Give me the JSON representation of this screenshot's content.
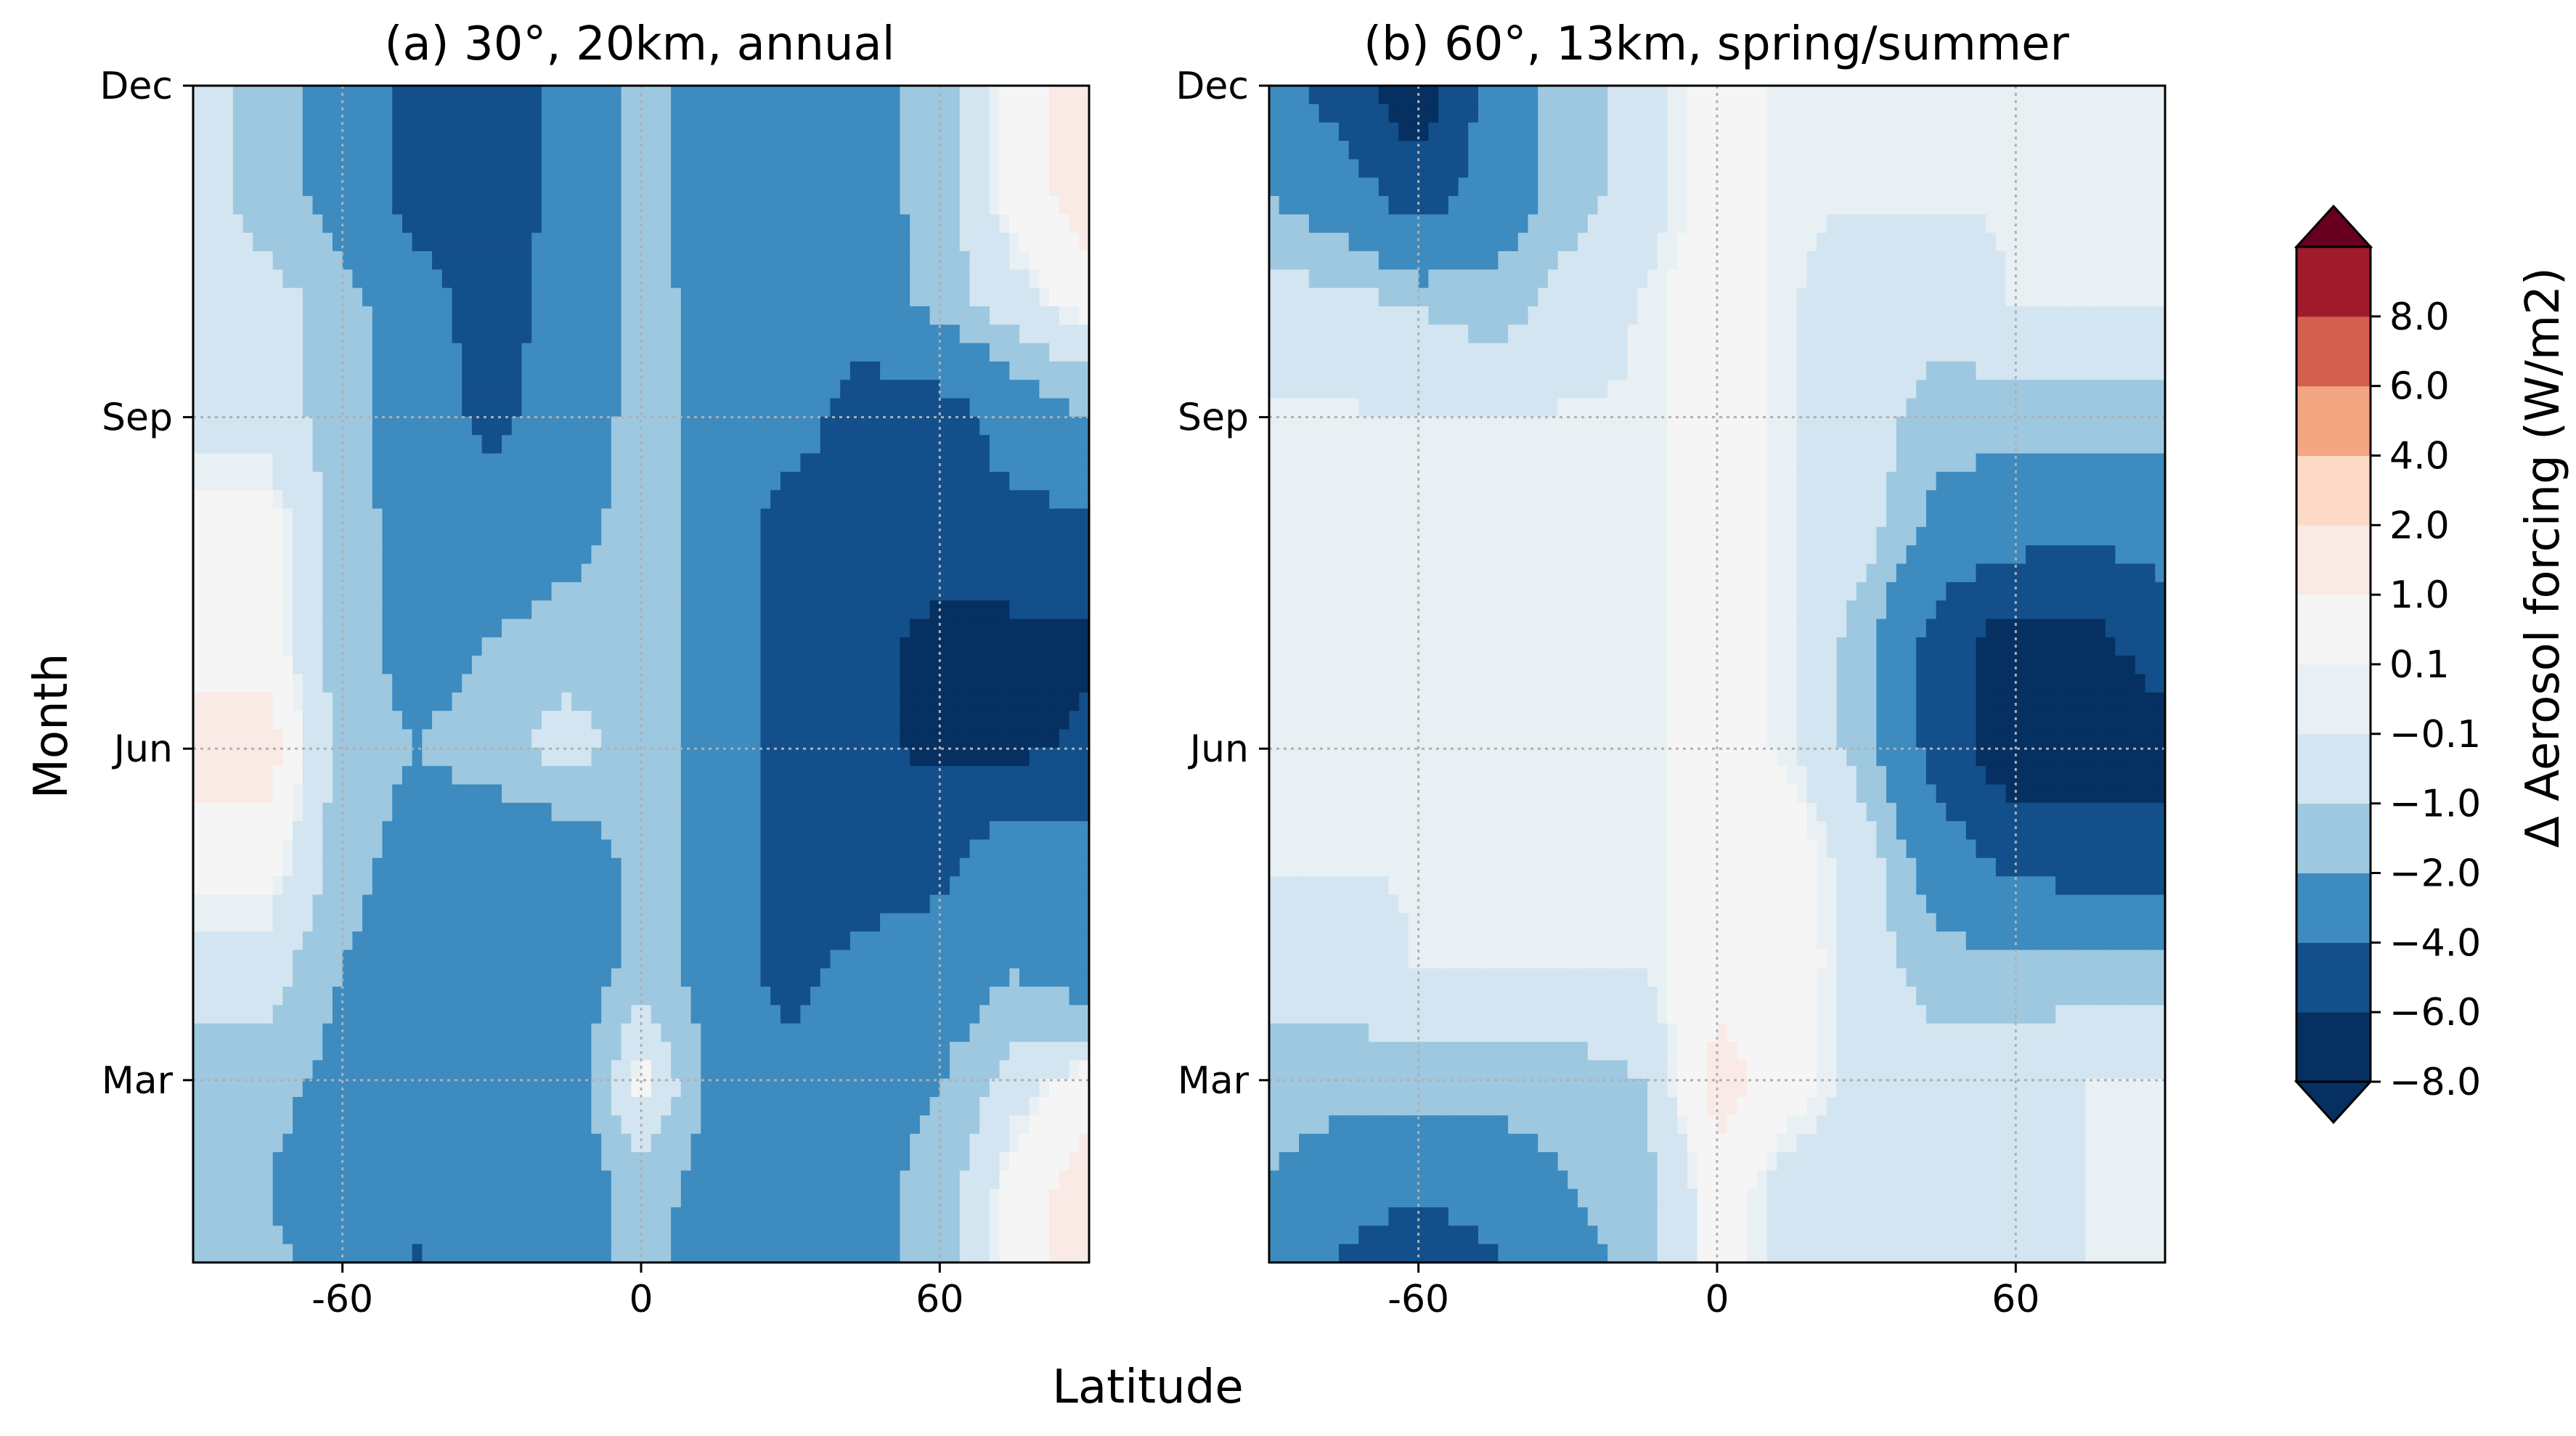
{
  "figure": {
    "xlabel": "Latitude",
    "ylabel": "Month"
  },
  "colorbar": {
    "label": "Δ Aerosol forcing (W/m2)",
    "levels": [
      -8,
      -6,
      -4,
      -2,
      -1,
      -0.1,
      0.1,
      1,
      2,
      4,
      6,
      8
    ],
    "tick_labels": [
      "−8.0",
      "−6.0",
      "−4.0",
      "−2.0",
      "−1.0",
      "−0.1",
      "0.1",
      "1.0",
      "2.0",
      "4.0",
      "6.0",
      "8.0"
    ],
    "colors": [
      "#053061",
      "#134f8a",
      "#3d8bbf",
      "#9dc8e0",
      "#d3e5f0",
      "#e9f0f4",
      "#f5f5f5",
      "#faeae6",
      "#fcdac6",
      "#f4a582",
      "#d35f4f",
      "#a11a2c"
    ],
    "extend_colors": {
      "under": "#053061",
      "over": "#67001f"
    }
  },
  "chart_data": [
    {
      "type": "heatmap",
      "title": "(a) 30°, 20km, annual",
      "xlabel": "Latitude",
      "ylabel": "Month",
      "xlim": [
        -90,
        90
      ],
      "ylim": [
        0,
        11
      ],
      "xticks": [
        -60,
        0,
        60
      ],
      "xtick_labels": [
        "-60",
        "0",
        "60"
      ],
      "yticks": [
        2,
        5,
        8,
        11
      ],
      "ytick_labels": [
        "Mar",
        "Jun",
        "Sep",
        "Dec"
      ],
      "grid": true,
      "x": [
        -90,
        -75,
        -60,
        -45,
        -30,
        -15,
        0,
        15,
        30,
        45,
        60,
        75,
        90
      ],
      "y": [
        0,
        1,
        2,
        3,
        4,
        5,
        6,
        7,
        8,
        9,
        10,
        11
      ],
      "z": [
        [
          -1.5,
          -1.5,
          -2.5,
          -4.5,
          -3.5,
          -2.5,
          -1.5,
          -3,
          -3.5,
          -2.5,
          -1.5,
          0.5,
          1.5
        ],
        [
          -1.5,
          -2,
          -3,
          -3.5,
          -3,
          -3,
          -1.5,
          -2.5,
          -3,
          -2.5,
          -1.5,
          0.5,
          1.5
        ],
        [
          -1.5,
          -1.5,
          -2.5,
          -3,
          -3,
          -3,
          0.5,
          -2.5,
          -3,
          -2.5,
          -2,
          -0.5,
          0.5
        ],
        [
          -0.5,
          -0.5,
          -2,
          -3,
          -3,
          -3,
          -1.5,
          -2.5,
          -5,
          -3,
          -3,
          -2,
          -3
        ],
        [
          0.5,
          0.5,
          -1.5,
          -2.5,
          -3,
          -3,
          -1.5,
          -2.5,
          -5,
          -5.5,
          -4.5,
          -2.5,
          -3.5
        ],
        [
          1.5,
          1.5,
          -1.5,
          -2,
          -1.5,
          -0.5,
          -1.5,
          -2.5,
          -5,
          -5.5,
          -6.5,
          -6.5,
          -5.5
        ],
        [
          0.5,
          0.5,
          -1.5,
          -2.5,
          -2,
          -1.5,
          -1.5,
          -2.5,
          -5,
          -5.5,
          -6.5,
          -6.5,
          -6.5
        ],
        [
          0.5,
          0.5,
          -1.5,
          -2.5,
          -3,
          -2.5,
          -1.5,
          -2.5,
          -5,
          -5,
          -5,
          -4.5,
          -4.5
        ],
        [
          -0.5,
          -0.5,
          -1.5,
          -3,
          -4.5,
          -3,
          -1.5,
          -2.5,
          -3,
          -5,
          -5,
          -3,
          -2
        ],
        [
          -0.5,
          -0.5,
          -1.5,
          -3,
          -5,
          -3,
          -1.5,
          -2.5,
          -3,
          -3,
          -1.5,
          -0.5,
          0.5
        ],
        [
          -0.5,
          -1.5,
          -2.5,
          -5,
          -5,
          -3.5,
          -1.5,
          -3,
          -3,
          -2.5,
          -1.5,
          0.5,
          1.5
        ],
        [
          -0.5,
          -1.5,
          -2.5,
          -5,
          -5,
          -3.5,
          -1.5,
          -3,
          -3,
          -2.5,
          -1.5,
          0.5,
          1.5
        ]
      ]
    },
    {
      "type": "heatmap",
      "title": "(b) 60°, 13km, spring/summer",
      "xlabel": "Latitude",
      "ylabel": "Month",
      "xlim": [
        -90,
        90
      ],
      "ylim": [
        0,
        11
      ],
      "xticks": [
        -60,
        0,
        60
      ],
      "xtick_labels": [
        "-60",
        "0",
        "60"
      ],
      "yticks": [
        2,
        5,
        8,
        11
      ],
      "ytick_labels": [
        "Mar",
        "Jun",
        "Sep",
        "Dec"
      ],
      "grid": true,
      "x": [
        -90,
        -75,
        -60,
        -45,
        -30,
        -15,
        0,
        15,
        30,
        45,
        60,
        75,
        90
      ],
      "y": [
        0,
        1,
        2,
        3,
        4,
        5,
        6,
        7,
        8,
        9,
        10,
        11
      ],
      "z": [
        [
          -3,
          -5,
          -7,
          -5,
          -3,
          -1.5,
          0.5,
          -0.5,
          -0.5,
          -0.5,
          -0.5,
          -0.05,
          -0.05
        ],
        [
          -2,
          -3,
          -3.5,
          -3,
          -2,
          -1.5,
          0.5,
          -0.5,
          -0.5,
          -0.5,
          -0.5,
          -0.05,
          -0.05
        ],
        [
          -1.5,
          -1.5,
          -1.5,
          -1.5,
          -1.5,
          -1,
          1.5,
          0.5,
          -0.5,
          -0.5,
          -0.5,
          -0.05,
          -0.05
        ],
        [
          -0.5,
          -0.5,
          -0.05,
          -0.05,
          -0.05,
          -0.05,
          0.5,
          0.5,
          -0.5,
          -1.5,
          -1.5,
          -1.5,
          -1.5
        ],
        [
          -0.05,
          -0.05,
          -0.05,
          -0.05,
          -0.05,
          -0.05,
          0.5,
          0.5,
          -0.5,
          -3,
          -4.5,
          -5,
          -5
        ],
        [
          -0.05,
          -0.05,
          -0.05,
          -0.05,
          -0.05,
          -0.05,
          0.5,
          -0.05,
          -1.5,
          -5,
          -7.5,
          -7,
          -7
        ],
        [
          -0.05,
          -0.05,
          -0.05,
          -0.05,
          -0.05,
          -0.05,
          0.5,
          -0.05,
          -1.5,
          -5,
          -7,
          -6.5,
          -5
        ],
        [
          -0.05,
          -0.05,
          -0.05,
          -0.05,
          -0.05,
          -0.05,
          0.5,
          -0.05,
          -0.5,
          -2.5,
          -3,
          -3.5,
          -3
        ],
        [
          -0.05,
          -0.05,
          -0.05,
          -0.05,
          -0.05,
          -0.05,
          0.5,
          -0.05,
          -0.5,
          -1.5,
          -1.5,
          -1.5,
          -1.5
        ],
        [
          -0.5,
          -0.5,
          -1,
          -1.5,
          -0.5,
          -0.05,
          0.5,
          -0.05,
          -0.5,
          -0.5,
          -0.05,
          -0.05,
          -0.05
        ],
        [
          -2,
          -3,
          -5,
          -3,
          -1.5,
          -0.5,
          0.5,
          -0.05,
          -0.05,
          -0.05,
          -0.05,
          -0.05,
          -0.05
        ],
        [
          -3,
          -5,
          -7.5,
          -3,
          -1.5,
          -0.5,
          0.5,
          -0.05,
          -0.05,
          -0.05,
          -0.05,
          -0.05,
          -0.05
        ]
      ]
    }
  ]
}
